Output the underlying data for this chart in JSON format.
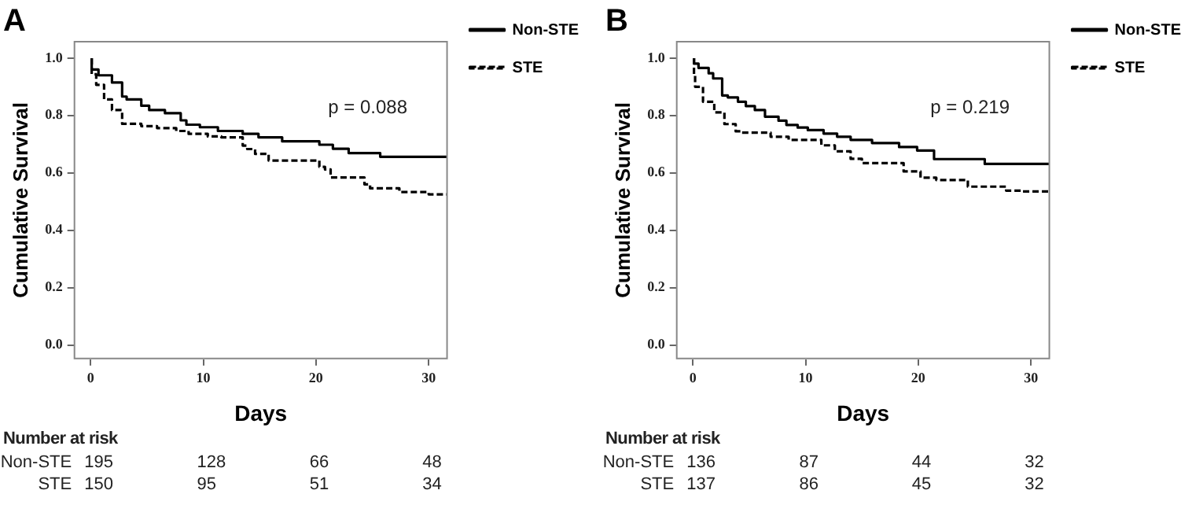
{
  "chart_data": [
    {
      "type": "step",
      "title": "A",
      "xlabel": "Days",
      "ylabel": "Cumulative Survival",
      "xlim": [
        -1.5,
        31.7
      ],
      "ylim": [
        -0.05,
        1.06
      ],
      "xticks": [
        0,
        10,
        20,
        30
      ],
      "yticks": [
        {
          "value": 0,
          "label": "0.0"
        },
        {
          "value": 0.2,
          "label": "0.2"
        },
        {
          "value": 0.4,
          "label": "0.4"
        },
        {
          "value": 0.6,
          "label": "0.6"
        },
        {
          "value": 0.8,
          "label": "0.8"
        },
        {
          "value": 1,
          "label": "1.0"
        }
      ],
      "grid": false,
      "legend": "right",
      "marker": "none",
      "annotations": [
        "p = 0.088",
        "Number at risk",
        "Non-STE",
        "195",
        "128",
        "66",
        "48",
        "STE",
        "150",
        "95",
        "51",
        "34"
      ],
      "series": [
        {
          "name": "Non-STE",
          "color": "#000000",
          "line_style": "solid",
          "x": [
            0.1,
            0.7,
            1.9,
            2.8,
            3.2,
            4.5,
            5.2,
            6.6,
            8.0,
            8.5,
            9.7,
            11.3,
            13.5,
            14.9,
            17.0,
            20.3,
            21.5,
            22.9,
            25.7,
            30.0,
            31.6
          ],
          "values": [
            1.0,
            0.96,
            0.94,
            0.915,
            0.866,
            0.856,
            0.834,
            0.819,
            0.808,
            0.783,
            0.768,
            0.759,
            0.746,
            0.736,
            0.724,
            0.71,
            0.698,
            0.684,
            0.669,
            0.656,
            0.656
          ]
        },
        {
          "name": "STE",
          "color": "#000000",
          "line_style": "dashed",
          "x": [
            0.1,
            0.5,
            1.2,
            1.9,
            2.8,
            4.5,
            5.9,
            7.6,
            8.7,
            10.4,
            11.6,
            13.5,
            13.9,
            14.6,
            15.8,
            20.3,
            20.8,
            21.3,
            24.3,
            24.8,
            27.4,
            30.0,
            31.6
          ],
          "values": [
            1.0,
            0.944,
            0.907,
            0.856,
            0.819,
            0.771,
            0.763,
            0.756,
            0.746,
            0.736,
            0.727,
            0.724,
            0.695,
            0.683,
            0.666,
            0.643,
            0.621,
            0.612,
            0.584,
            0.56,
            0.546,
            0.533,
            0.525
          ]
        }
      ]
    },
    {
      "type": "step",
      "title": "B",
      "xlabel": "Days",
      "ylabel": "Cumulative Survival",
      "xlim": [
        -1.5,
        31.7
      ],
      "ylim": [
        -0.05,
        1.06
      ],
      "xticks": [
        0,
        10,
        20,
        30
      ],
      "yticks": [
        {
          "value": 0,
          "label": "0.0"
        },
        {
          "value": 0.2,
          "label": "0.2"
        },
        {
          "value": 0.4,
          "label": "0.4"
        },
        {
          "value": 0.6,
          "label": "0.6"
        },
        {
          "value": 0.8,
          "label": "0.8"
        },
        {
          "value": 1,
          "label": "1.0"
        }
      ],
      "grid": false,
      "legend": "right",
      "marker": "none",
      "annotations": [
        "p = 0.219",
        "Number at risk",
        "Non-STE",
        "136",
        "87",
        "44",
        "32",
        "STE",
        "137",
        "86",
        "45",
        "32"
      ],
      "series": [
        {
          "name": "Non-STE",
          "color": "#000000",
          "line_style": "solid",
          "x": [
            0.1,
            0.5,
            1.4,
            1.8,
            2.6,
            3.1,
            4.0,
            4.7,
            5.5,
            6.4,
            7.6,
            8.3,
            9.3,
            10.2,
            11.6,
            12.8,
            14.0,
            15.9,
            18.3,
            19.9,
            21.4,
            25.9,
            30.0,
            31.6
          ],
          "values": [
            1.0,
            0.981,
            0.966,
            0.947,
            0.929,
            0.87,
            0.863,
            0.848,
            0.833,
            0.819,
            0.796,
            0.782,
            0.767,
            0.758,
            0.749,
            0.737,
            0.726,
            0.715,
            0.704,
            0.69,
            0.678,
            0.648,
            0.631,
            0.631
          ]
        },
        {
          "name": "STE",
          "color": "#000000",
          "line_style": "dashed",
          "x": [
            0.1,
            0.2,
            0.9,
            1.9,
            2.8,
            3.8,
            4.3,
            6.9,
            8.5,
            11.4,
            12.6,
            14.0,
            15.0,
            18.7,
            20.2,
            21.6,
            24.4,
            27.8,
            29.2,
            31.6
          ],
          "values": [
            1.0,
            0.944,
            0.9,
            0.848,
            0.811,
            0.77,
            0.745,
            0.74,
            0.726,
            0.715,
            0.696,
            0.675,
            0.649,
            0.634,
            0.605,
            0.583,
            0.575,
            0.552,
            0.538,
            0.535
          ]
        }
      ]
    }
  ]
}
